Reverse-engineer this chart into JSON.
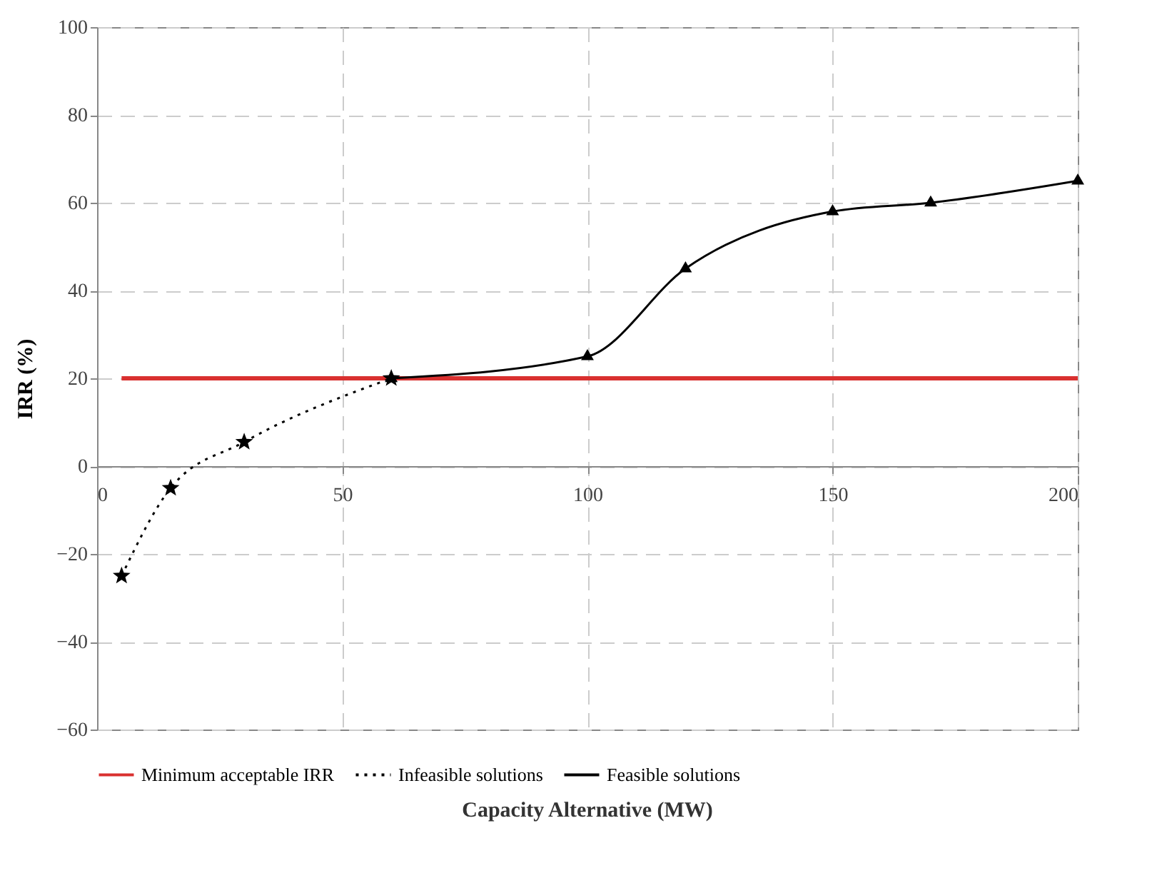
{
  "chart_data": {
    "type": "line",
    "xlabel": "Capacity Alternative (MW)",
    "ylabel": "IRR (%)",
    "xlim": [
      0,
      200
    ],
    "xticks": [
      0,
      50,
      100,
      150,
      200
    ],
    "ylim": [
      -60,
      100
    ],
    "yticks": [
      -60,
      -40,
      -20,
      0,
      20,
      40,
      60,
      80,
      100
    ],
    "grid": true,
    "legend": "bottom",
    "series": [
      {
        "name": "Minimum acceptable IRR",
        "color": "#d9302f",
        "x": [
          5,
          200
        ],
        "values": [
          20,
          20
        ],
        "marker": "none",
        "line_style": "solid"
      },
      {
        "name": "Infeasible solutions",
        "color": "#000000",
        "x": [
          5,
          15,
          30,
          60
        ],
        "values": [
          -25,
          -5,
          5.5,
          20
        ],
        "marker": "star",
        "line_style": "dotted"
      },
      {
        "name": "Feasible solutions",
        "color": "#000000",
        "x": [
          60,
          100,
          120,
          150,
          170,
          200
        ],
        "values": [
          20,
          25,
          45,
          58,
          60,
          65
        ],
        "marker": "triangle",
        "line_style": "solid"
      }
    ]
  }
}
